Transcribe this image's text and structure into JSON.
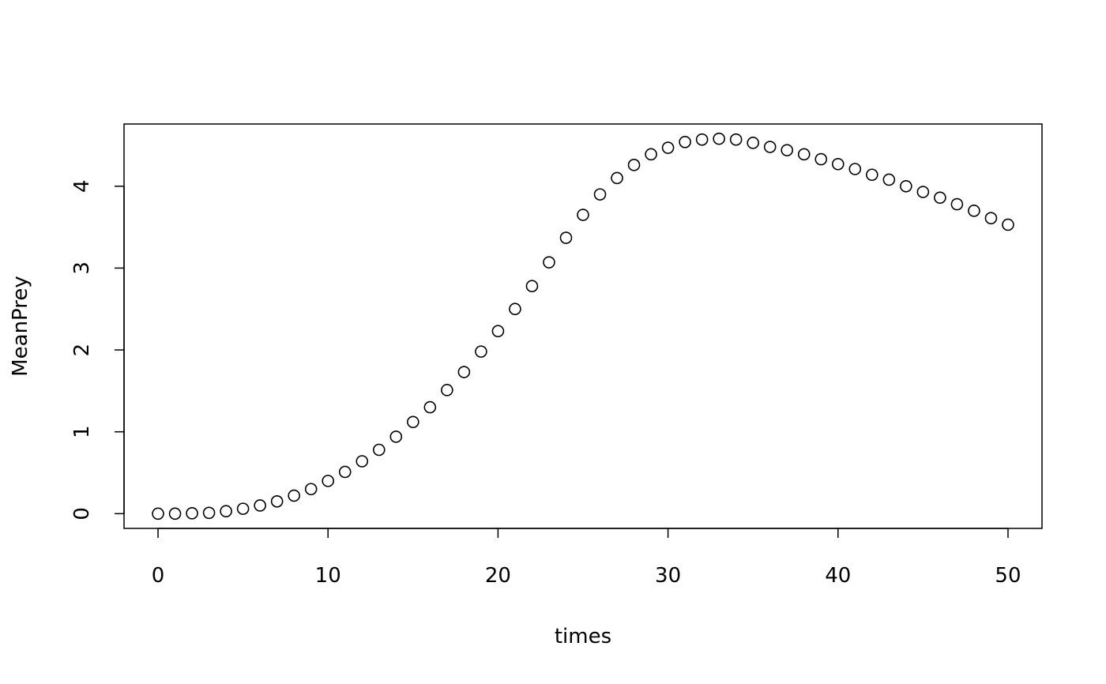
{
  "chart_data": {
    "type": "scatter",
    "x_label": "times",
    "y_label": "MeanPrey",
    "x": [
      0,
      1,
      2,
      3,
      4,
      5,
      6,
      7,
      8,
      9,
      10,
      11,
      12,
      13,
      14,
      15,
      16,
      17,
      18,
      19,
      20,
      21,
      22,
      23,
      24,
      25,
      26,
      27,
      28,
      29,
      30,
      31,
      32,
      33,
      34,
      35,
      36,
      37,
      38,
      39,
      40,
      41,
      42,
      43,
      44,
      45,
      46,
      47,
      48,
      49,
      50
    ],
    "values": [
      0,
      0,
      0.005,
      0.01,
      0.03,
      0.06,
      0.1,
      0.15,
      0.22,
      0.3,
      0.4,
      0.51,
      0.64,
      0.78,
      0.94,
      1.12,
      1.3,
      1.51,
      1.73,
      1.98,
      2.23,
      2.5,
      2.78,
      3.07,
      3.37,
      3.65,
      3.9,
      4.1,
      4.26,
      4.39,
      4.47,
      4.54,
      4.57,
      4.58,
      4.57,
      4.53,
      4.48,
      4.44,
      4.39,
      4.33,
      4.27,
      4.21,
      4.14,
      4.08,
      4.0,
      3.93,
      3.86,
      3.78,
      3.7,
      3.61,
      3.53
    ],
    "color": "#000000",
    "xlim": [
      -2,
      52
    ],
    "xticks": [
      0,
      10,
      20,
      30,
      40,
      50
    ],
    "ylim": [
      -0.18,
      4.76
    ],
    "yticks": [
      0,
      1,
      2,
      3,
      4
    ]
  }
}
